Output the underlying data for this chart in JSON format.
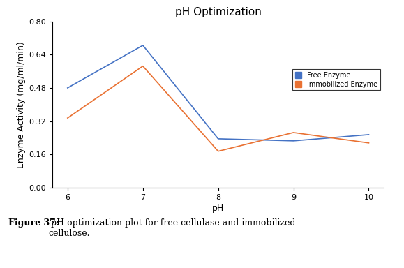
{
  "title": "pH Optimization",
  "xlabel": "pH",
  "ylabel": "Enzyme Activity (mg/ml/min)",
  "x": [
    6,
    7,
    8,
    9,
    10
  ],
  "free_enzyme": [
    0.48,
    0.685,
    0.235,
    0.225,
    0.255
  ],
  "immobilized_enzyme": [
    0.335,
    0.585,
    0.175,
    0.265,
    0.215
  ],
  "free_color": "#4472C4",
  "immobilized_color": "#E97132",
  "ylim": [
    0,
    0.8
  ],
  "yticks": [
    0,
    0.16,
    0.32,
    0.48,
    0.64,
    0.8
  ],
  "xticks": [
    6,
    7,
    8,
    9,
    10
  ],
  "legend_labels": [
    "Free Enzyme",
    "Immobilized Enzyme"
  ],
  "title_fontsize": 11,
  "axis_label_fontsize": 9,
  "tick_fontsize": 8,
  "legend_fontsize": 7,
  "caption_bold": "Figure 37:",
  "caption_rest": " pH optimization plot for free cellulase and immobilized\ncellulose.",
  "caption_fontsize": 9
}
